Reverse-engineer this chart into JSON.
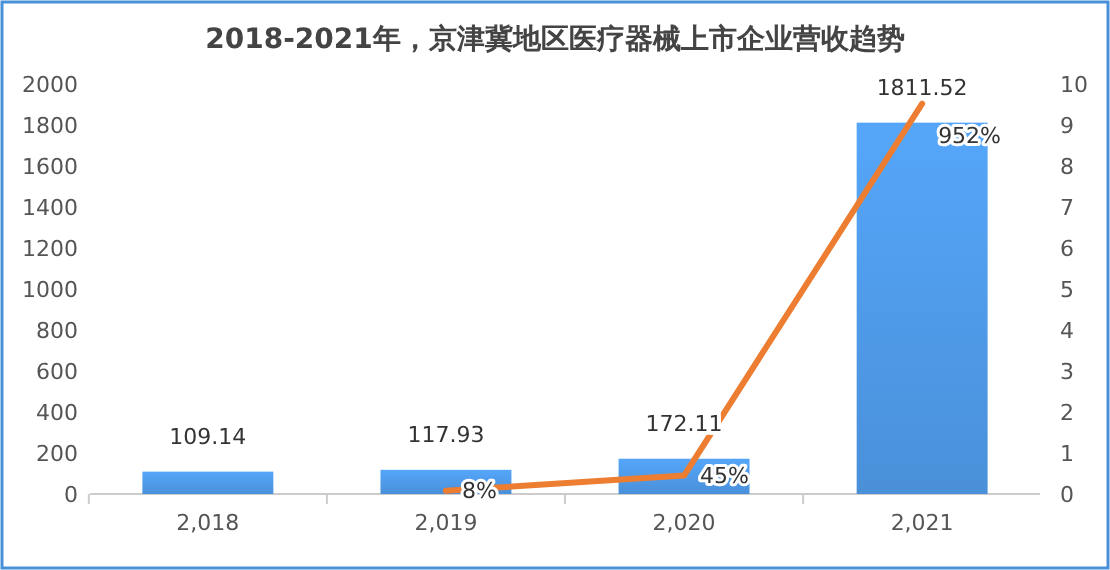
{
  "chart_data": {
    "type": "bar",
    "title": "2018-2021年，京津冀地区医疗器械上市企业营收趋势",
    "categories": [
      "2,018",
      "2,019",
      "2,020",
      "2,021"
    ],
    "series": [
      {
        "color": "#4a90d9",
        "values": [
          109.14,
          117.93,
          172.11,
          1811.52
        ],
        "value_labels": [
          "109.14",
          "117.93",
          "172.11",
          "1811.52"
        ]
      },
      {
        "type": "line",
        "axis": "y2",
        "color": "#ed7d31",
        "values": [
          null,
          0.08,
          0.45,
          9.52
        ],
        "value_labels": [
          null,
          "8%",
          "45%",
          "952%"
        ]
      }
    ],
    "ylim": [
      0,
      2000
    ],
    "yticks": [
      0,
      200,
      400,
      600,
      800,
      1000,
      1200,
      1400,
      1600,
      1800,
      2000
    ],
    "y2lim": [
      0,
      10
    ],
    "y2ticks": [
      0,
      1,
      2,
      3,
      4,
      5,
      6,
      7,
      8,
      9,
      10
    ],
    "grid": false
  }
}
